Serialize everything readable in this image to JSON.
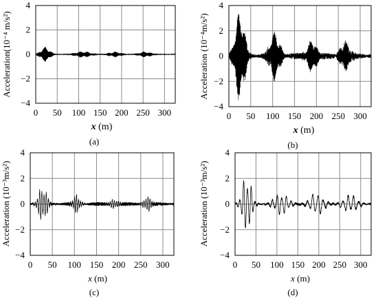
{
  "chart_data": [
    {
      "type": "line",
      "panel_label": "(a)",
      "ylabel_prefix": "Acceleration",
      "ylabel_units": "(10⁻⁴ m/s²)",
      "xlabel_var": "x",
      "xlabel_unit": "(m)",
      "xlim": [
        0,
        325
      ],
      "ylim": [
        -4,
        4
      ],
      "xticks": [
        0,
        50,
        100,
        150,
        200,
        250,
        300
      ],
      "yticks": [
        -4,
        -2,
        0,
        2,
        4
      ],
      "grid": true,
      "series": [
        {
          "packets": [
            {
              "center": 22,
              "width": 14,
              "amplitude": 0.6,
              "cycles_per_m": 1.3
            },
            {
              "center": 110,
              "width": 24,
              "amplitude": 0.25,
              "cycles_per_m": 1.3
            },
            {
              "center": 185,
              "width": 18,
              "amplitude": 0.22,
              "cycles_per_m": 1.3
            },
            {
              "center": 255,
              "width": 18,
              "amplitude": 0.23,
              "cycles_per_m": 1.3
            }
          ],
          "noise_amplitude": 0.04
        }
      ]
    },
    {
      "type": "line",
      "panel_label": "(b)",
      "ylabel_prefix": "Acceleration",
      "ylabel_units": "(10⁻⁴m/s²)",
      "xlabel_var": "x",
      "xlabel_unit": "(m)",
      "xlim": [
        0,
        325
      ],
      "ylim": [
        -4,
        4
      ],
      "xticks": [
        0,
        50,
        100,
        150,
        200,
        250,
        300
      ],
      "yticks": [
        -4,
        -2,
        0,
        2,
        4
      ],
      "grid": true,
      "series": [
        {
          "packets": [
            {
              "center": 25,
              "width": 14,
              "amplitude": 3.5,
              "cycles_per_m": 1.0
            },
            {
              "center": 105,
              "width": 15,
              "amplitude": 1.9,
              "cycles_per_m": 1.0
            },
            {
              "center": 190,
              "width": 14,
              "amplitude": 1.3,
              "cycles_per_m": 1.0
            },
            {
              "center": 265,
              "width": 14,
              "amplitude": 1.2,
              "cycles_per_m": 1.0
            }
          ],
          "noise_amplitude": 0.25
        }
      ]
    },
    {
      "type": "line",
      "panel_label": "(c)",
      "ylabel_prefix": "Acceleration",
      "ylabel_units": "(10⁻³m/s²)",
      "xlabel_var": "x",
      "xlabel_unit": "(m)",
      "xlim": [
        0,
        325
      ],
      "ylim": [
        -4,
        4
      ],
      "xticks": [
        0,
        50,
        100,
        150,
        200,
        250,
        300
      ],
      "yticks": [
        -4,
        -2,
        0,
        2,
        4
      ],
      "grid": true,
      "series": [
        {
          "packets": [
            {
              "center": 28,
              "width": 12,
              "amplitude": 1.4,
              "cycles_per_m": 0.2
            },
            {
              "center": 105,
              "width": 10,
              "amplitude": 0.7,
              "cycles_per_m": 0.22
            },
            {
              "center": 190,
              "width": 12,
              "amplitude": 0.35,
              "cycles_per_m": 0.22
            },
            {
              "center": 265,
              "width": 12,
              "amplitude": 0.55,
              "cycles_per_m": 0.22
            }
          ],
          "noise_amplitude": 0.15
        }
      ]
    },
    {
      "type": "line",
      "panel_label": "(d)",
      "ylabel_prefix": "Acceleration",
      "ylabel_units": "(10⁻³m/s²)",
      "xlabel_var": "x",
      "xlabel_unit": "(m)",
      "xlim": [
        0,
        325
      ],
      "ylim": [
        -4,
        4
      ],
      "xticks": [
        0,
        50,
        100,
        150,
        200,
        250,
        300
      ],
      "yticks": [
        -4,
        -2,
        0,
        2,
        4
      ],
      "grid": true,
      "series": [
        {
          "packets": [
            {
              "center": 28,
              "width": 14,
              "amplitude": 2.4,
              "cycles_per_m": 0.11
            },
            {
              "center": 110,
              "width": 22,
              "amplitude": 0.9,
              "cycles_per_m": 0.09
            },
            {
              "center": 195,
              "width": 22,
              "amplitude": 0.9,
              "cycles_per_m": 0.08
            },
            {
              "center": 275,
              "width": 22,
              "amplitude": 0.75,
              "cycles_per_m": 0.08
            }
          ],
          "noise_amplitude": 0.1
        }
      ]
    }
  ]
}
